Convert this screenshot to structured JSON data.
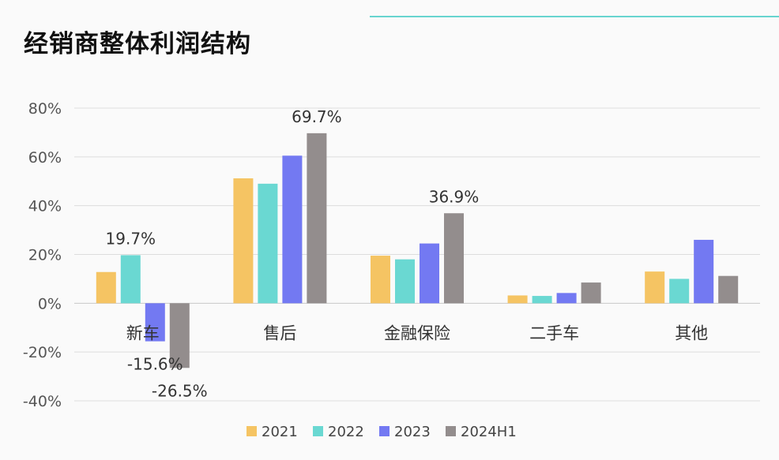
{
  "title": "经销商整体利润结构",
  "colors": {
    "accent_rule": "#67d4cf",
    "series": [
      "#f5c463",
      "#6ad8d2",
      "#7379f2",
      "#938d8d"
    ],
    "grid": "#dddddd"
  },
  "chart_data": {
    "type": "bar",
    "categories": [
      "新车",
      "售后",
      "金融保险",
      "二手车",
      "其他"
    ],
    "series": [
      {
        "name": "2021",
        "values": [
          12.8,
          51.2,
          19.5,
          3.2,
          13.0
        ]
      },
      {
        "name": "2022",
        "values": [
          19.7,
          49.0,
          18.0,
          3.0,
          10.0
        ]
      },
      {
        "name": "2023",
        "values": [
          -15.6,
          60.5,
          24.5,
          4.2,
          26.0
        ]
      },
      {
        "name": "2024H1",
        "values": [
          -26.5,
          69.7,
          36.9,
          8.5,
          11.2
        ]
      }
    ],
    "data_labels": [
      {
        "series": 1,
        "category": 0,
        "text": "19.7%"
      },
      {
        "series": 2,
        "category": 0,
        "text": "-15.6%"
      },
      {
        "series": 3,
        "category": 0,
        "text": "-26.5%"
      },
      {
        "series": 3,
        "category": 1,
        "text": "69.7%"
      },
      {
        "series": 3,
        "category": 2,
        "text": "36.9%"
      }
    ],
    "yticks": [
      "80%",
      "60%",
      "40%",
      "20%",
      "0%",
      "-20%",
      "-40%"
    ],
    "ytick_values": [
      80,
      60,
      40,
      20,
      0,
      -20,
      -40
    ],
    "ylim": [
      -40,
      80
    ],
    "grid": true,
    "legend_position": "bottom"
  }
}
